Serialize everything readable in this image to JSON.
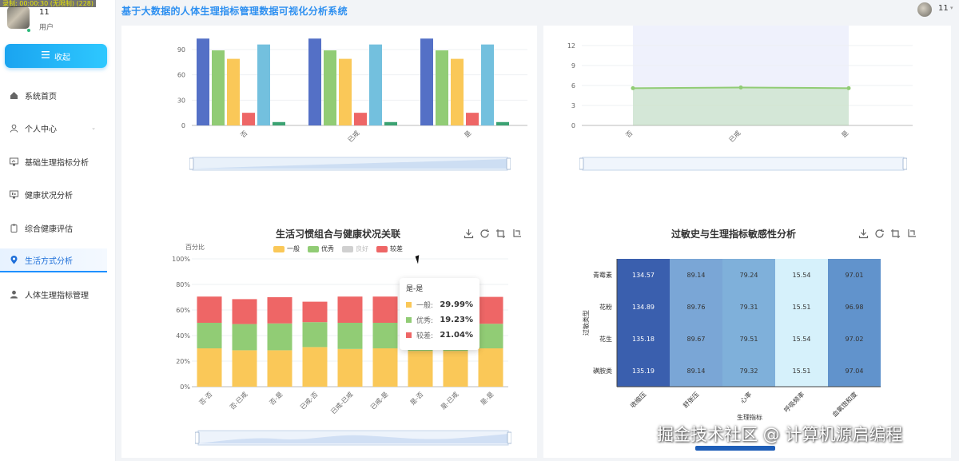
{
  "recording_badge": "录制: 00:00:30 (无限制) (228)",
  "app": {
    "title": "基于大数据的人体生理指标管理数据可视化分析系统"
  },
  "user": {
    "name": "11",
    "role": "用户"
  },
  "topbar": {
    "user_name": "11"
  },
  "sidebar": {
    "collapse_label": "收起",
    "items": [
      {
        "label": "系统首页",
        "icon": "home-icon"
      },
      {
        "label": "个人中心",
        "icon": "user-icon"
      },
      {
        "label": "基础生理指标分析",
        "icon": "chart-icon"
      },
      {
        "label": "健康状况分析",
        "icon": "monitor-icon"
      },
      {
        "label": "综合健康评估",
        "icon": "clipboard-icon"
      },
      {
        "label": "生活方式分析",
        "icon": "location-icon",
        "active": true
      },
      {
        "label": "人体生理指标管理",
        "icon": "person-icon"
      }
    ]
  },
  "colors": {
    "accent": "#2d8ff0",
    "general": "#fac858",
    "excellent": "#91cc75",
    "good": "#d0d0d0",
    "poor": "#ee6666",
    "blue_bar": "#5470c6",
    "sky_bar": "#73c0de",
    "teal_bar": "#3ba272"
  },
  "chart_top_left": {
    "type": "bar",
    "categories": [
      "否",
      "已戒",
      "是"
    ],
    "series": [
      {
        "values": [
          103,
          103,
          103
        ],
        "color": "#5470c6"
      },
      {
        "values": [
          89,
          89,
          89
        ],
        "color": "#91cc75"
      },
      {
        "values": [
          79,
          79,
          79
        ],
        "color": "#fac858"
      },
      {
        "values": [
          15,
          15,
          15
        ],
        "color": "#ee6666"
      },
      {
        "values": [
          96,
          96,
          96
        ],
        "color": "#73c0de"
      },
      {
        "values": [
          4,
          4,
          4
        ],
        "color": "#3ba272"
      }
    ],
    "ylim": [
      0,
      110
    ],
    "yticks": [
      "0",
      "30",
      "60",
      "90"
    ]
  },
  "chart_top_right": {
    "type": "line",
    "categories": [
      "否",
      "已戒",
      "是"
    ],
    "values": [
      5.6,
      5.7,
      5.6
    ],
    "ylim": [
      0,
      14
    ],
    "yticks": [
      "0",
      "3",
      "6",
      "9",
      "12"
    ]
  },
  "chart_bottom_left": {
    "type": "bar",
    "title": "生活习惯组合与健康状况关联",
    "ylabel": "百分比",
    "yticks": [
      "0%",
      "20%",
      "40%",
      "60%",
      "80%",
      "100%"
    ],
    "legend": [
      {
        "name": "一般",
        "color": "#fac858"
      },
      {
        "name": "优秀",
        "color": "#91cc75"
      },
      {
        "name": "良好",
        "color": "#d0d0d0"
      },
      {
        "name": "较差",
        "color": "#ee6666"
      }
    ],
    "categories": [
      "否-否",
      "否-已戒",
      "否-是",
      "已戒-否",
      "已戒-已戒",
      "已戒-是",
      "是-否",
      "是-已戒",
      "是-是"
    ],
    "series": [
      {
        "name": "一般",
        "values": [
          30,
          28.5,
          28.5,
          31,
          29.5,
          30,
          28,
          28,
          29.99
        ]
      },
      {
        "name": "优秀",
        "values": [
          20,
          20.5,
          21,
          19.5,
          20.5,
          20,
          20.5,
          20.5,
          19.23
        ]
      },
      {
        "name": "较差",
        "values": [
          20.5,
          19.5,
          20.5,
          16,
          20.5,
          20.5,
          20.5,
          20.5,
          21.04
        ]
      }
    ],
    "ylim": [
      0,
      100
    ],
    "tooltip": {
      "title": "是-是",
      "rows": [
        {
          "label": "一般:",
          "value": "29.99%",
          "color": "#fac858"
        },
        {
          "label": "优秀:",
          "value": "19.23%",
          "color": "#91cc75"
        },
        {
          "label": "较差:",
          "value": "21.04%",
          "color": "#ee6666"
        }
      ]
    }
  },
  "chart_bottom_right": {
    "type": "heatmap",
    "title": "过敏史与生理指标敏感性分析",
    "xlabel": "生理指标",
    "ylabel": "过敏类型",
    "x": [
      "收缩压",
      "舒张压",
      "心率",
      "呼吸频率",
      "血氧饱和度"
    ],
    "y": [
      "青霉素",
      "花粉",
      "花生",
      "磺胺类"
    ],
    "values": [
      [
        134.57,
        89.14,
        79.24,
        15.54,
        97.01
      ],
      [
        134.89,
        89.76,
        79.31,
        15.51,
        96.98
      ],
      [
        135.18,
        89.67,
        79.51,
        15.54,
        97.02
      ],
      [
        135.19,
        89.14,
        79.32,
        15.51,
        97.04
      ]
    ],
    "value_labels": [
      [
        "134.57",
        "89.14",
        "79.24",
        "15.54",
        "97.01"
      ],
      [
        "134.89",
        "89.76",
        "79.31",
        "15.51",
        "96.98"
      ],
      [
        "135.18",
        "89.67",
        "79.51",
        "15.54",
        "97.02"
      ],
      [
        "135.19",
        "89.14",
        "79.32",
        "15.51",
        "97.04"
      ]
    ]
  },
  "watermark": "掘金技术社区 @ 计算机源启编程"
}
